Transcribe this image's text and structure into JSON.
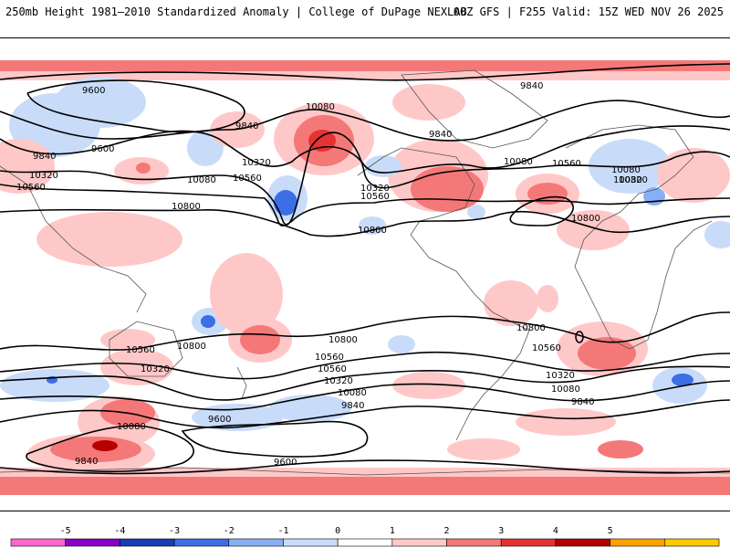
{
  "header": {
    "left_title": "250mb Height 1981–2010 Standardized Anomaly | College of DuPage NEXLAB",
    "right_title": "00Z GFS | F255 Valid: 15Z WED NOV 26 2025"
  },
  "map": {
    "field": "250mb geopotential height (m) with standardized anomaly shading",
    "contour_labels": [
      {
        "id": "c1",
        "text": "9600"
      },
      {
        "id": "c2",
        "text": "9600"
      },
      {
        "id": "c3",
        "text": "9840"
      },
      {
        "id": "c4",
        "text": "9840"
      },
      {
        "id": "c5",
        "text": "10080"
      },
      {
        "id": "c6",
        "text": "10080"
      },
      {
        "id": "c7",
        "text": "10320"
      },
      {
        "id": "c8",
        "text": "10560"
      },
      {
        "id": "c9",
        "text": "10320"
      },
      {
        "id": "c10",
        "text": "10560"
      },
      {
        "id": "c11",
        "text": "10800"
      },
      {
        "id": "c12",
        "text": "10080"
      },
      {
        "id": "c13",
        "text": "10320"
      },
      {
        "id": "c14",
        "text": "10560"
      },
      {
        "id": "c15",
        "text": "10800"
      },
      {
        "id": "c16",
        "text": "9840"
      },
      {
        "id": "c17",
        "text": "9840"
      },
      {
        "id": "c18",
        "text": "10080"
      },
      {
        "id": "c19",
        "text": "10560"
      },
      {
        "id": "c20",
        "text": "10080"
      },
      {
        "id": "c21",
        "text": "10320"
      },
      {
        "id": "c22",
        "text": "10800"
      },
      {
        "id": "c23",
        "text": "10560"
      },
      {
        "id": "c24",
        "text": "10800"
      },
      {
        "id": "c25",
        "text": "10320"
      },
      {
        "id": "c26",
        "text": "10560"
      },
      {
        "id": "c27",
        "text": "10800"
      },
      {
        "id": "c28",
        "text": "10800"
      },
      {
        "id": "c29",
        "text": "10560"
      },
      {
        "id": "c30",
        "text": "10320"
      },
      {
        "id": "c31",
        "text": "10080"
      },
      {
        "id": "c32",
        "text": "9840"
      },
      {
        "id": "c33",
        "text": "9600"
      },
      {
        "id": "c34",
        "text": "9600"
      },
      {
        "id": "c35",
        "text": "10560"
      },
      {
        "id": "c36",
        "text": "10320"
      },
      {
        "id": "c37",
        "text": "10080"
      },
      {
        "id": "c38",
        "text": "9840"
      },
      {
        "id": "c39",
        "text": "10080"
      },
      {
        "id": "c40",
        "text": "9840"
      }
    ]
  },
  "colorbar": {
    "ticks": [
      "-5",
      "-4",
      "-3",
      "-2",
      "-1",
      "0",
      "1",
      "2",
      "3",
      "4",
      "5"
    ],
    "colors": [
      "#ff66cc",
      "#8a00c8",
      "#1a3cb4",
      "#3c6ee6",
      "#87aff5",
      "#c8dcfa",
      "#ffffff",
      "#ffc8c8",
      "#f57878",
      "#e63232",
      "#b40000",
      "#ffa000",
      "#ffc800"
    ]
  }
}
